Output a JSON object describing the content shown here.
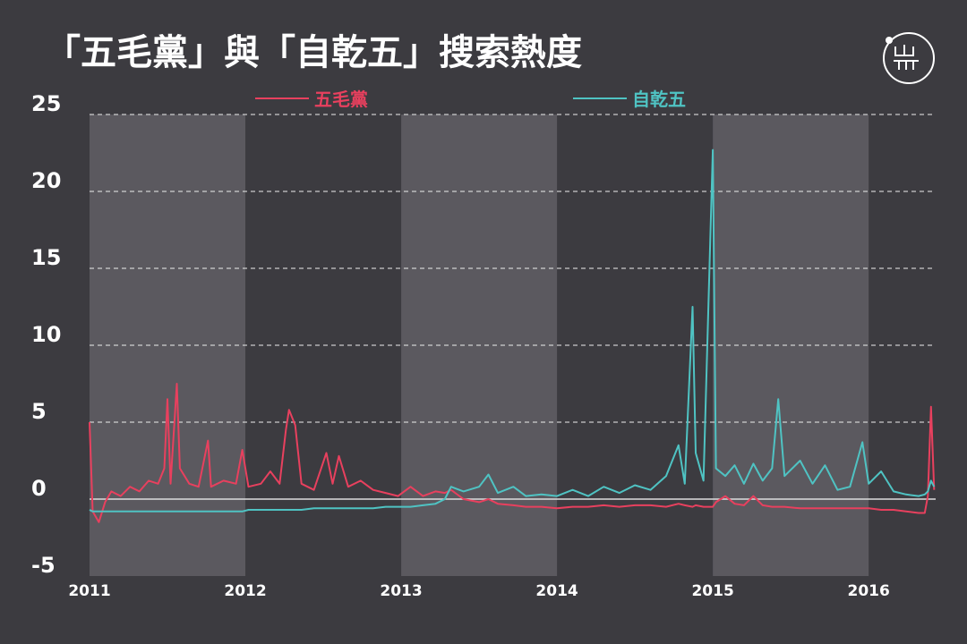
{
  "chart_data": {
    "type": "line",
    "title": "「五毛黨」與「自乾五」搜索熱度",
    "x": [
      2011.0,
      2011.02,
      2011.06,
      2011.1,
      2011.14,
      2011.2,
      2011.26,
      2011.32,
      2011.38,
      2011.44,
      2011.48,
      2011.5,
      2011.52,
      2011.56,
      2011.58,
      2011.64,
      2011.7,
      2011.76,
      2011.78,
      2011.86,
      2011.94,
      2011.98,
      2012.02,
      2012.1,
      2012.16,
      2012.22,
      2012.26,
      2012.28,
      2012.32,
      2012.36,
      2012.44,
      2012.52,
      2012.56,
      2012.6,
      2012.66,
      2012.74,
      2012.82,
      2012.9,
      2012.98,
      2013.06,
      2013.14,
      2013.22,
      2013.28,
      2013.32,
      2013.4,
      2013.5,
      2013.56,
      2013.62,
      2013.72,
      2013.8,
      2013.9,
      2014.0,
      2014.1,
      2014.2,
      2014.3,
      2014.4,
      2014.5,
      2014.6,
      2014.7,
      2014.78,
      2014.82,
      2014.87,
      2014.89,
      2014.94,
      2015.0,
      2015.02,
      2015.08,
      2015.14,
      2015.2,
      2015.26,
      2015.32,
      2015.38,
      2015.42,
      2015.46,
      2015.56,
      2015.64,
      2015.72,
      2015.8,
      2015.88,
      2015.96,
      2016.0,
      2016.08,
      2016.16,
      2016.24,
      2016.32,
      2016.36,
      2016.38,
      2016.4,
      2016.42
    ],
    "series": [
      {
        "name": "五毛黨",
        "color": "#e8405e",
        "values": [
          5.0,
          -0.8,
          -1.5,
          -0.2,
          0.5,
          0.2,
          0.8,
          0.5,
          1.2,
          1.0,
          2.0,
          6.5,
          1.0,
          7.5,
          2.0,
          1.0,
          0.8,
          3.8,
          0.8,
          1.2,
          1.0,
          3.2,
          0.8,
          1.0,
          1.8,
          1.0,
          4.5,
          5.8,
          4.8,
          1.0,
          0.6,
          3.0,
          1.0,
          2.8,
          0.8,
          1.2,
          0.6,
          0.4,
          0.2,
          0.8,
          0.2,
          0.5,
          0.4,
          0.6,
          0.0,
          -0.2,
          0.0,
          -0.3,
          -0.4,
          -0.5,
          -0.5,
          -0.6,
          -0.5,
          -0.5,
          -0.4,
          -0.5,
          -0.4,
          -0.4,
          -0.5,
          -0.3,
          -0.4,
          -0.5,
          -0.4,
          -0.5,
          -0.5,
          -0.2,
          0.2,
          -0.3,
          -0.4,
          0.2,
          -0.4,
          -0.5,
          -0.5,
          -0.5,
          -0.6,
          -0.6,
          -0.6,
          -0.6,
          -0.6,
          -0.6,
          -0.6,
          -0.7,
          -0.7,
          -0.8,
          -0.9,
          -0.9,
          0.2,
          6.0,
          0.6
        ]
      },
      {
        "name": "自乾五",
        "color": "#4fc3c3",
        "values": [
          -0.7,
          -0.8,
          -0.8,
          -0.8,
          -0.8,
          -0.8,
          -0.8,
          -0.8,
          -0.8,
          -0.8,
          -0.8,
          -0.8,
          -0.8,
          -0.8,
          -0.8,
          -0.8,
          -0.8,
          -0.8,
          -0.8,
          -0.8,
          -0.8,
          -0.8,
          -0.7,
          -0.7,
          -0.7,
          -0.7,
          -0.7,
          -0.7,
          -0.7,
          -0.7,
          -0.6,
          -0.6,
          -0.6,
          -0.6,
          -0.6,
          -0.6,
          -0.6,
          -0.5,
          -0.5,
          -0.5,
          -0.4,
          -0.3,
          0.0,
          0.8,
          0.5,
          0.8,
          1.6,
          0.4,
          0.8,
          0.2,
          0.3,
          0.2,
          0.6,
          0.2,
          0.8,
          0.4,
          0.9,
          0.6,
          1.5,
          3.5,
          1.0,
          12.5,
          3.0,
          1.2,
          22.7,
          2.0,
          1.5,
          2.2,
          1.0,
          2.3,
          1.2,
          2.0,
          6.5,
          1.5,
          2.5,
          1.0,
          2.2,
          0.6,
          0.8,
          3.7,
          1.0,
          1.8,
          0.5,
          0.3,
          0.2,
          0.3,
          0.5,
          1.2,
          0.8
        ]
      }
    ],
    "xlim": [
      2011.0,
      2016.43
    ],
    "xticks": [
      2011,
      2012,
      2013,
      2014,
      2015,
      2016
    ],
    "ylim": [
      -5,
      25
    ],
    "yticks": [
      -5,
      0,
      5,
      10,
      15,
      20,
      25
    ],
    "grid": true
  }
}
